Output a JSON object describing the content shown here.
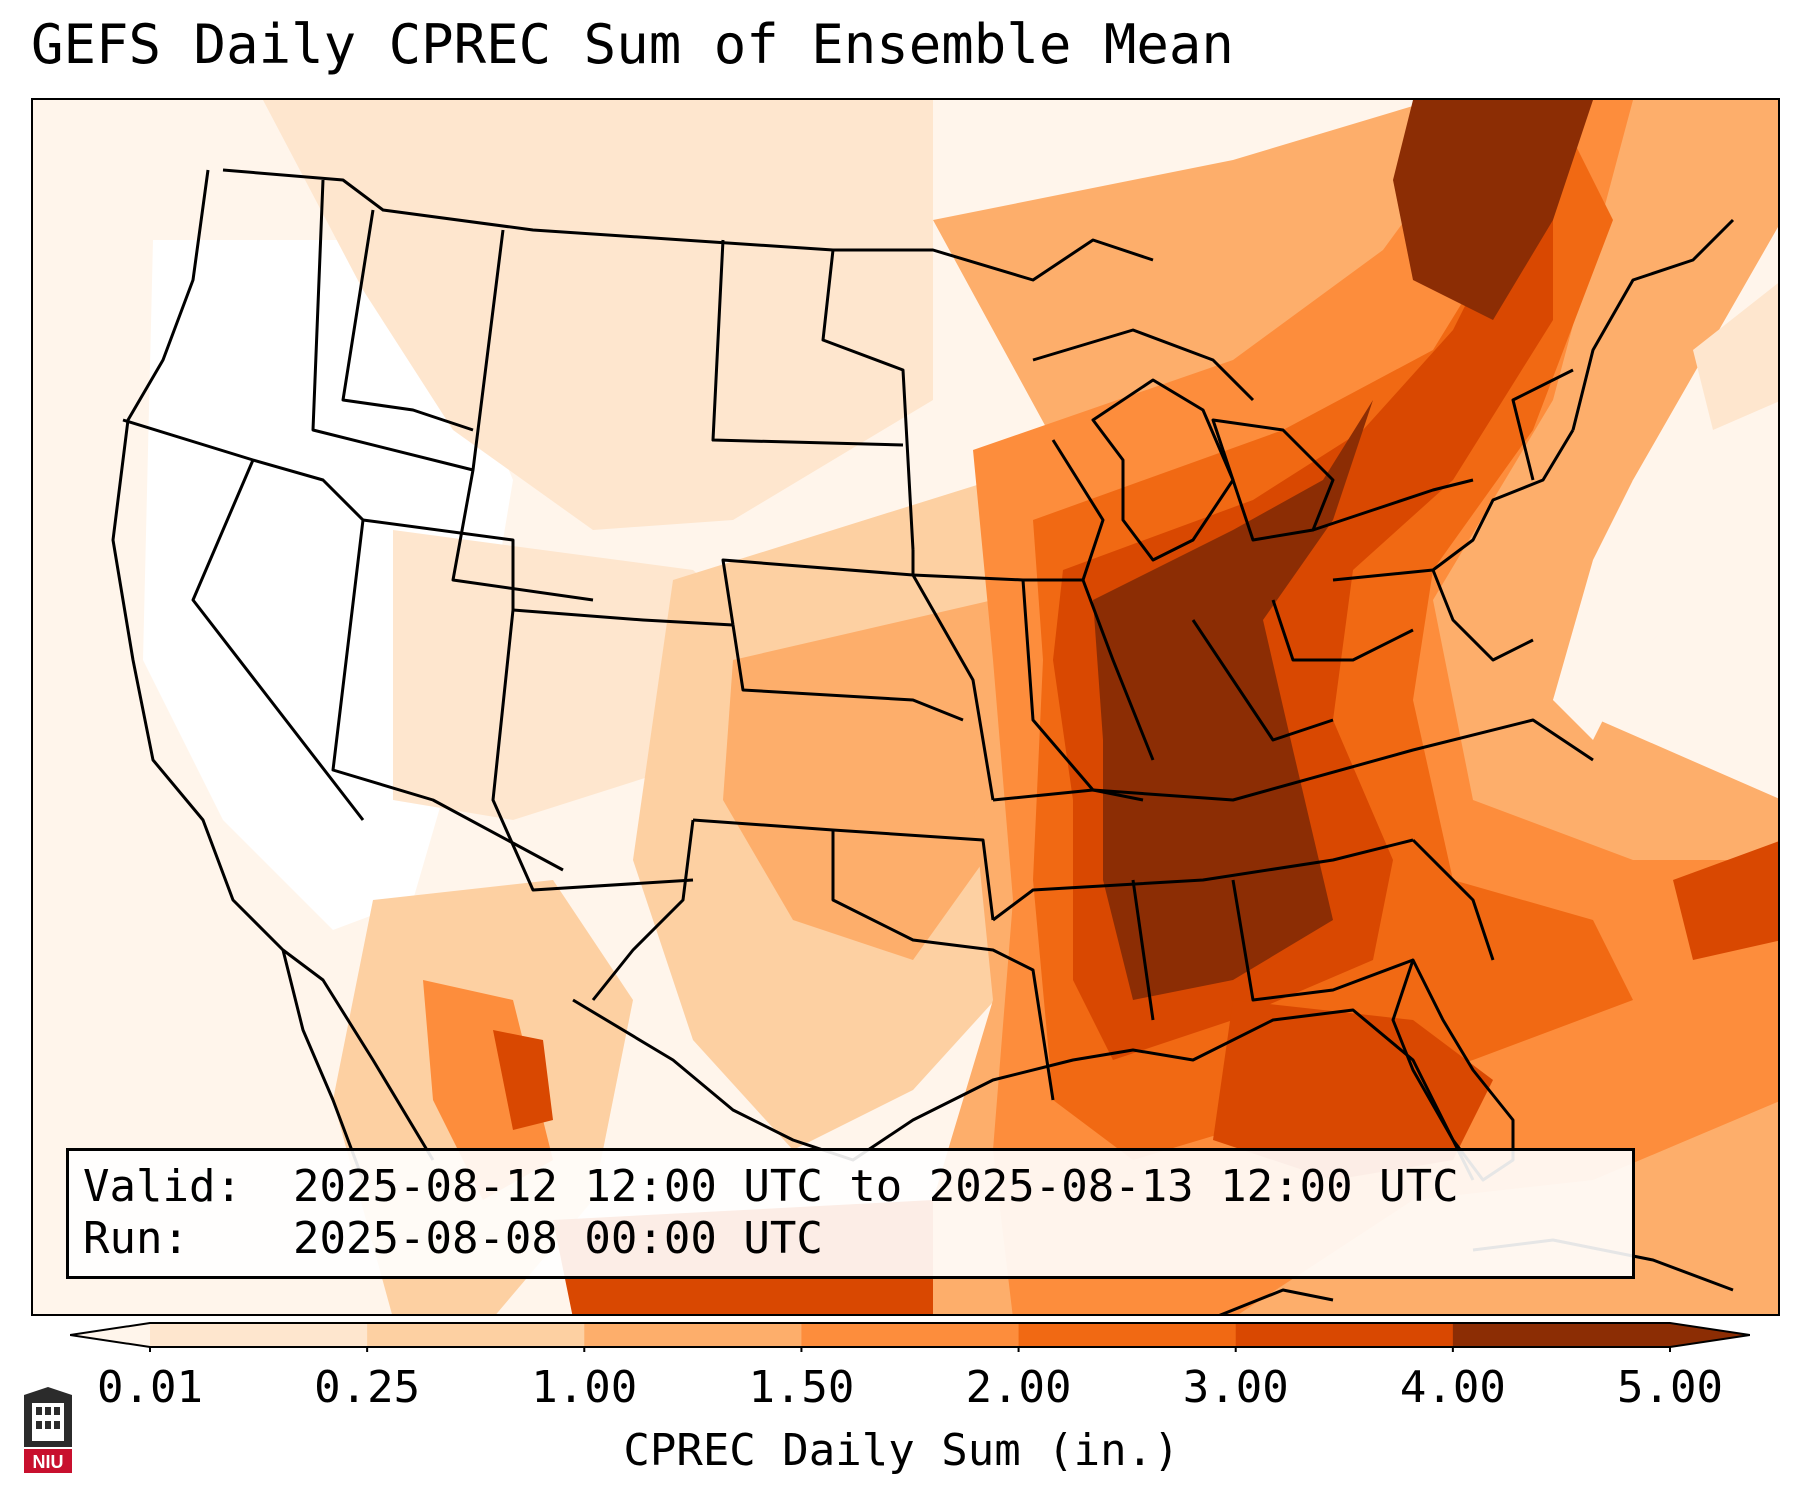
{
  "title": "GEFS Daily CPREC Sum of Ensemble Mean",
  "info": {
    "valid_label": "Valid:",
    "valid_value": "2025-08-12 12:00 UTC to 2025-08-13 12:00 UTC",
    "run_label": "Run:",
    "run_value": "2025-08-08 00:00 UTC"
  },
  "colorbar": {
    "label": "CPREC Daily Sum (in.)",
    "ticks": [
      "0.01",
      "0.25",
      "1.00",
      "1.50",
      "2.00",
      "3.00",
      "4.00",
      "5.00"
    ],
    "colors": [
      "#fff5eb",
      "#fee6ce",
      "#fdd0a2",
      "#fdae6b",
      "#fd8d3c",
      "#f16913",
      "#d94801",
      "#8c2d04"
    ],
    "extend": "both"
  },
  "logo": {
    "text": "NIU",
    "color": "#c8102e"
  },
  "map": {
    "ocean_color": "#fff6ee",
    "land_color": "#ffffff",
    "border_color": "#000000"
  }
}
